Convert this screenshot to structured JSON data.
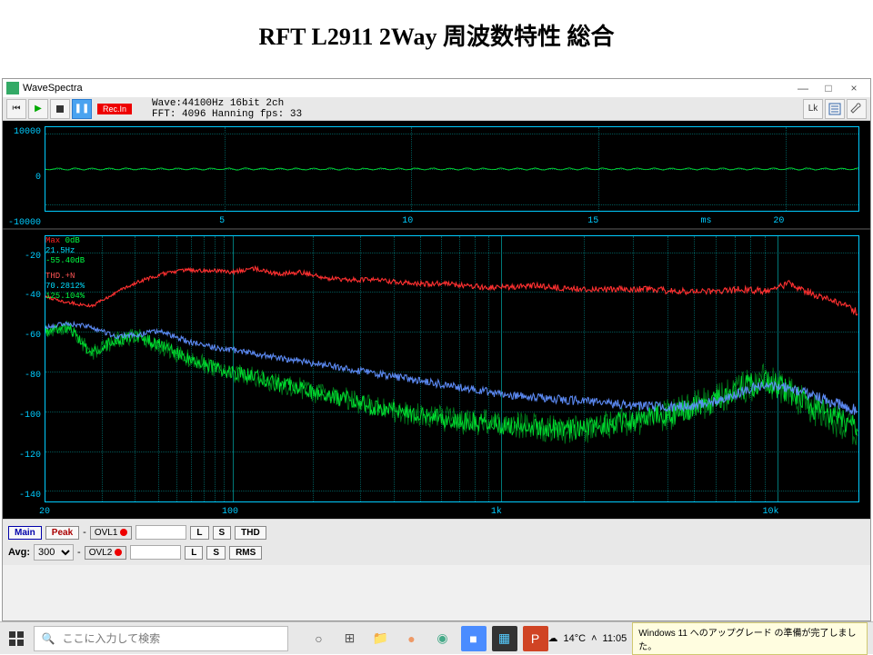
{
  "slide_title": "RFT  L2911  2Way 周波数特性 総合",
  "window": {
    "title": "WaveSpectra",
    "min": "—",
    "max": "□",
    "close": "×"
  },
  "toolbar": {
    "rec_label": "Rec.In",
    "info_line1": "Wave:44100Hz 16bit 2ch",
    "info_line2": "FFT: 4096 Hanning   fps: 33",
    "btn_lk": "Lk",
    "btn_set": "⚙",
    "btn_wr": "✎"
  },
  "wave_plot": {
    "y_ticks": [
      {
        "v": "10000",
        "pct": 8
      },
      {
        "v": "0",
        "pct": 50
      },
      {
        "v": "-10000",
        "pct": 92
      }
    ],
    "x_ticks": [
      {
        "v": "5",
        "pct": 22
      },
      {
        "v": "10",
        "pct": 45
      },
      {
        "v": "15",
        "pct": 68
      },
      {
        "v": "20",
        "pct": 91
      }
    ],
    "x_unit": "ms",
    "x_unit_pct": 82,
    "grid_h_pct": [
      8,
      50,
      92
    ],
    "grid_v_pct": [
      22,
      45,
      68,
      91
    ],
    "line_color": "#00dd33",
    "signal_amp_pct": 1.0
  },
  "spec_plot": {
    "peak_max_label": "Max",
    "peak_hz_label": "0dB",
    "peak_freq": "21.5Hz",
    "peak_db": "-55.40dB",
    "thd_label": "THD.+N",
    "thd_val1": "70.2812%",
    "thd_val2": "125.104%",
    "y_ticks": [
      {
        "v": "-20",
        "pct": 6
      },
      {
        "v": "-40",
        "pct": 21
      },
      {
        "v": "-60",
        "pct": 36
      },
      {
        "v": "-80",
        "pct": 51
      },
      {
        "v": "-100",
        "pct": 66
      },
      {
        "v": "-120",
        "pct": 81
      },
      {
        "v": "-140",
        "pct": 96
      }
    ],
    "x_ticks": [
      {
        "v": "20",
        "pct": 0
      },
      {
        "v": "100",
        "pct": 23
      },
      {
        "v": "1k",
        "pct": 56
      },
      {
        "v": "10k",
        "pct": 90
      }
    ],
    "grid_h_pct": [
      6,
      21,
      36,
      51,
      66,
      81,
      96
    ],
    "log_decades": [
      {
        "start_pct": 0,
        "width_pct": 23
      },
      {
        "start_pct": 23,
        "width_pct": 33
      },
      {
        "start_pct": 56,
        "width_pct": 34
      }
    ],
    "colors": {
      "red": "#ff3030",
      "green": "#00ee33",
      "blue": "#6090ff"
    },
    "red_trace_db": [
      -42,
      -45,
      -47,
      -40,
      -34,
      -30,
      -28,
      -28,
      -29,
      -27,
      -30,
      -29,
      -32,
      -33,
      -33,
      -34,
      -35,
      -35,
      -36,
      -37,
      -37,
      -36,
      -37,
      -38,
      -38,
      -38,
      -38,
      -39,
      -39,
      -39,
      -38,
      -39,
      -35,
      -40,
      -44,
      -50
    ],
    "blue_trace_db": [
      -58,
      -56,
      -58,
      -63,
      -62,
      -60,
      -65,
      -68,
      -70,
      -72,
      -74,
      -76,
      -78,
      -80,
      -82,
      -84,
      -86,
      -88,
      -90,
      -92,
      -94,
      -95,
      -96,
      -97,
      -98,
      -99,
      -100,
      -100,
      -99,
      -97,
      -92,
      -88,
      -90,
      -94,
      -98,
      -102
    ],
    "green_trace_db": [
      -60,
      -58,
      -72,
      -65,
      -63,
      -68,
      -74,
      -78,
      -82,
      -84,
      -88,
      -90,
      -94,
      -96,
      -100,
      -102,
      -104,
      -106,
      -108,
      -108,
      -110,
      -110,
      -112,
      -112,
      -110,
      -108,
      -106,
      -104,
      -100,
      -96,
      -90,
      -86,
      -92,
      -100,
      -106,
      -112
    ],
    "green_noise_amp": 7,
    "blue_noise_amp": 3,
    "red_noise_amp": 2
  },
  "controls": {
    "main": "Main",
    "peak": "Peak",
    "ovl1": "OVL1",
    "ovl2": "OVL2",
    "L": "L",
    "S": "S",
    "thd": "THD",
    "rms": "RMS",
    "avg_label": "Avg:",
    "avg_value": "300"
  },
  "taskbar": {
    "search_placeholder": "ここに入力して検索",
    "temp": "14°C",
    "time": "11:05",
    "notification": "Windows 11 へのアップグレード の準備が完了しました。",
    "icons": [
      {
        "name": "cortana",
        "glyph": "○",
        "bg": "",
        "fg": "#555"
      },
      {
        "name": "taskview",
        "glyph": "⊞",
        "bg": "",
        "fg": "#555"
      },
      {
        "name": "explorer",
        "glyph": "📁",
        "bg": "",
        "fg": ""
      },
      {
        "name": "firefox",
        "glyph": "●",
        "bg": "",
        "fg": "#e96"
      },
      {
        "name": "chrome",
        "glyph": "◉",
        "bg": "",
        "fg": "#4a8"
      },
      {
        "name": "zoom",
        "glyph": "■",
        "bg": "#4a8cff",
        "fg": "#fff"
      },
      {
        "name": "wavespectra",
        "glyph": "▦",
        "bg": "#333",
        "fg": "#5cf"
      },
      {
        "name": "powerpoint",
        "glyph": "P",
        "bg": "#d04424",
        "fg": "#fff"
      }
    ]
  }
}
